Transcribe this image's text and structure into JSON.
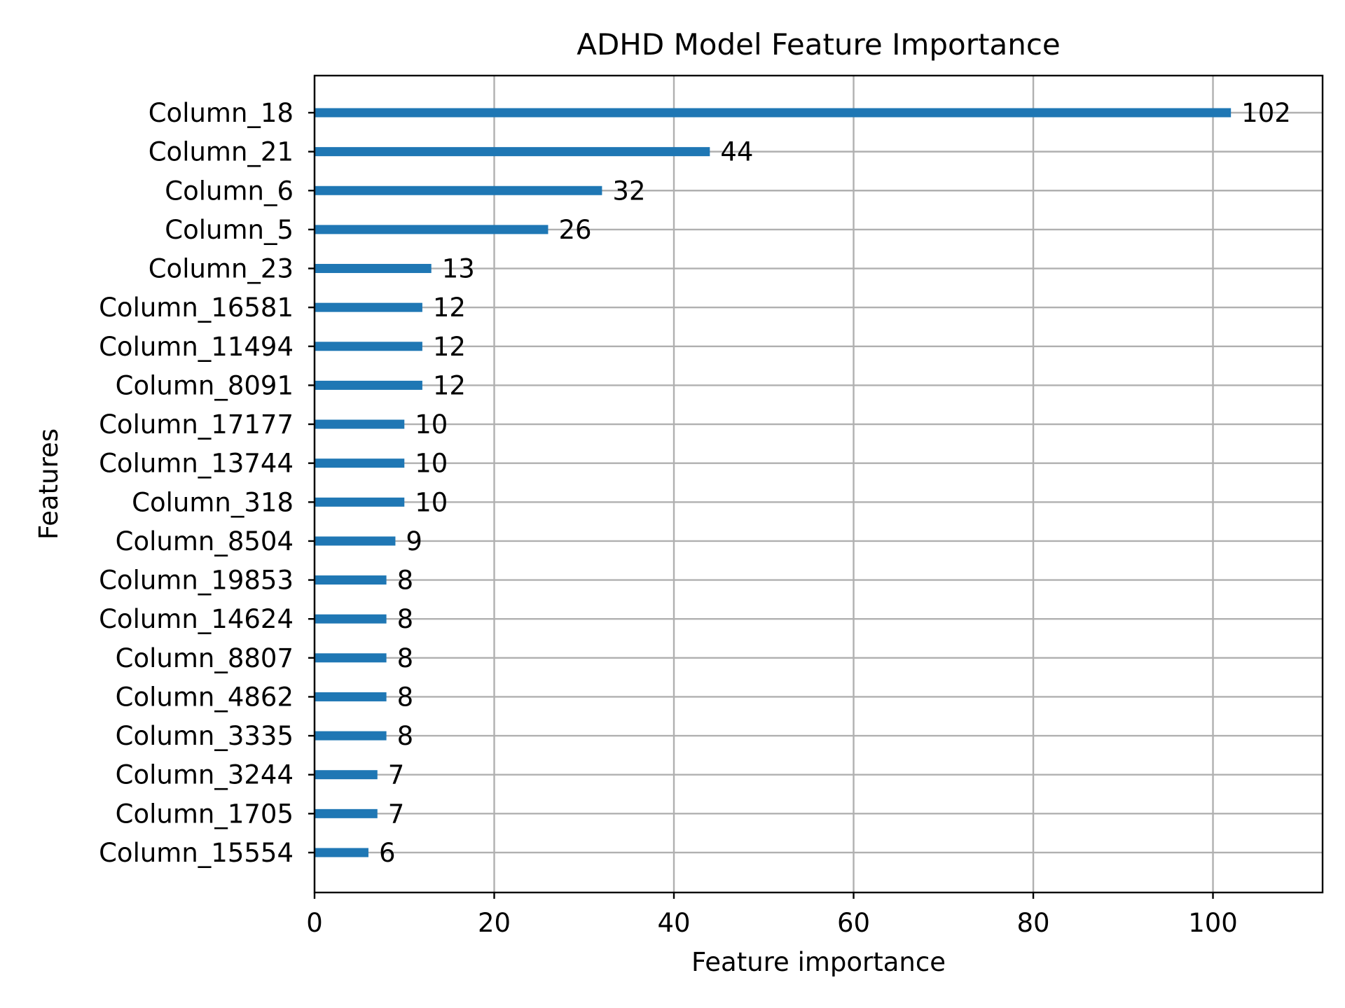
{
  "chart_data": {
    "type": "bar",
    "orientation": "horizontal",
    "title": "ADHD Model Feature Importance",
    "xlabel": "Feature importance",
    "ylabel": "Features",
    "categories": [
      "Column_18",
      "Column_21",
      "Column_6",
      "Column_5",
      "Column_23",
      "Column_16581",
      "Column_11494",
      "Column_8091",
      "Column_17177",
      "Column_13744",
      "Column_318",
      "Column_8504",
      "Column_19853",
      "Column_14624",
      "Column_8807",
      "Column_4862",
      "Column_3335",
      "Column_3244",
      "Column_1705",
      "Column_15554"
    ],
    "values": [
      102,
      44,
      32,
      26,
      13,
      12,
      12,
      12,
      10,
      10,
      10,
      9,
      8,
      8,
      8,
      8,
      8,
      7,
      7,
      6
    ],
    "xlim": [
      0,
      112.2
    ],
    "xticks": [
      0,
      20,
      40,
      60,
      80,
      100
    ],
    "grid": true,
    "bar_color": "#1f77b4"
  }
}
